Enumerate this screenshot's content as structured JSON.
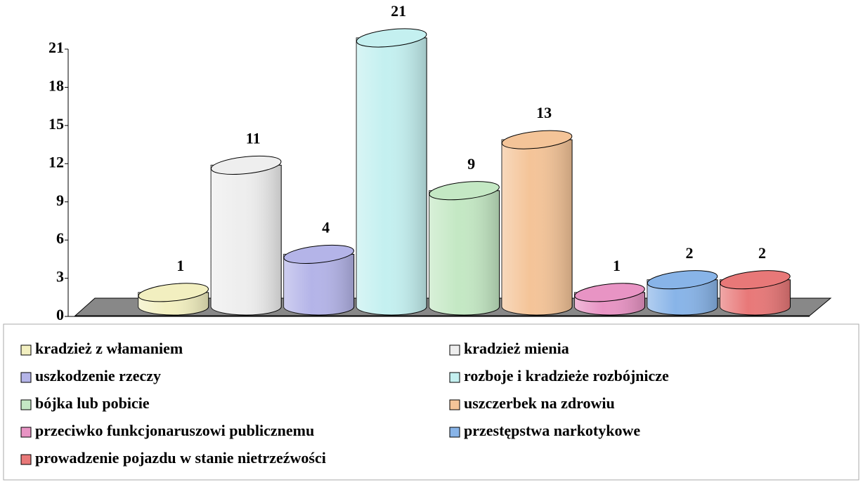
{
  "chart_data": {
    "type": "bar3d",
    "categories": [
      "kradzież z włamaniem",
      "kradzież mienia",
      "uszkodzenie rzeczy",
      "rozboje i kradzieże rozbójnicze",
      "bójka lub pobicie",
      "uszczerbek na zdrowiu",
      "przeciwko funkcjonaruszowi publicznemu",
      "przestępstwa narkotykowe",
      "prowadzenie pojazdu w stanie nietrzeźwości"
    ],
    "values": [
      1,
      11,
      4,
      21,
      9,
      13,
      1,
      2,
      2
    ],
    "colors": [
      "#f2efc0",
      "#eeeeee",
      "#b4b4e8",
      "#c4f0f0",
      "#c4e8c4",
      "#f4c498",
      "#e894c4",
      "#88b4e8",
      "#e87878"
    ],
    "ylim": [
      0,
      21
    ],
    "yticks": [
      0,
      3,
      6,
      9,
      12,
      15,
      18,
      21
    ],
    "legend": "bottom"
  }
}
